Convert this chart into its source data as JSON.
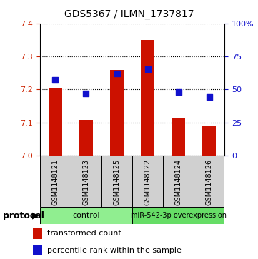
{
  "title": "GDS5367 / ILMN_1737817",
  "samples": [
    "GSM1148121",
    "GSM1148123",
    "GSM1148125",
    "GSM1148122",
    "GSM1148124",
    "GSM1148126"
  ],
  "transformed_counts": [
    7.205,
    7.108,
    7.258,
    7.35,
    7.113,
    7.088
  ],
  "percentile_ranks": [
    57,
    47,
    62,
    65,
    48,
    44
  ],
  "ylim_left": [
    7.0,
    7.4
  ],
  "ylim_right": [
    0,
    100
  ],
  "yticks_left": [
    7.0,
    7.1,
    7.2,
    7.3,
    7.4
  ],
  "yticks_right": [
    0,
    25,
    50,
    75,
    100
  ],
  "bar_color": "#CC1100",
  "dot_color": "#1111CC",
  "bar_width": 0.45,
  "dot_size": 35,
  "sample_box_color": "#d0d0d0",
  "control_color": "#90EE90",
  "overexp_color": "#66DD66",
  "legend_items": [
    "transformed count",
    "percentile rank within the sample"
  ],
  "left_tick_color": "#CC2200",
  "right_tick_color": "#1111CC"
}
